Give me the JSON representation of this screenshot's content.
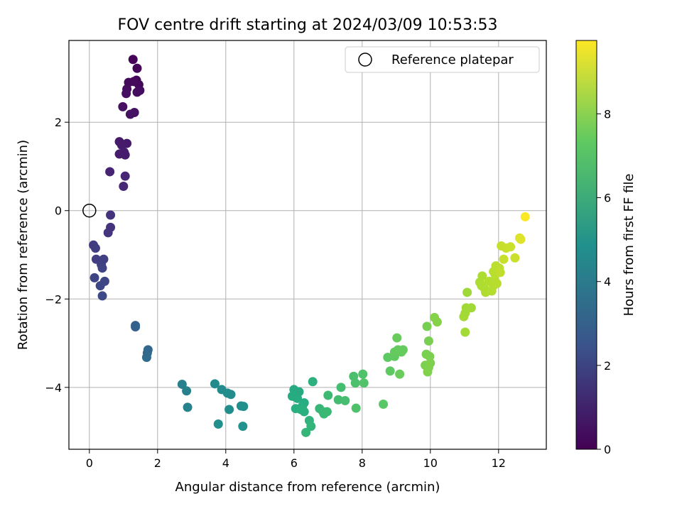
{
  "chart_data": {
    "type": "scatter",
    "title": "FOV centre drift starting at 2024/03/09 10:53:53",
    "xlabel": "Angular distance from reference (arcmin)",
    "ylabel": "Rotation from reference (arcmin)",
    "xlim": [
      -0.6,
      13.4
    ],
    "ylim": [
      -5.4,
      3.85
    ],
    "xticks": [
      0,
      2,
      4,
      6,
      8,
      10,
      12
    ],
    "xtick_labels": [
      "0",
      "2",
      "4",
      "6",
      "8",
      "10",
      "12"
    ],
    "yticks": [
      -4,
      -2,
      0,
      2
    ],
    "ytick_labels": [
      "−4",
      "−2",
      "0",
      "2"
    ],
    "grid": true,
    "legend": {
      "position": "top-right",
      "entries": [
        "Reference platepar"
      ]
    },
    "colorbar": {
      "label": "Hours from first FF file",
      "colormap": "viridis",
      "range": [
        0,
        9.75
      ],
      "ticks": [
        0,
        2,
        4,
        6,
        8
      ],
      "tick_labels": [
        "0",
        "2",
        "4",
        "6",
        "8"
      ]
    },
    "reference_point": {
      "x": 0,
      "y": 0
    },
    "points": [
      {
        "x": 1.28,
        "y": 3.42,
        "c": 0.05
      },
      {
        "x": 1.4,
        "y": 3.22,
        "c": 0.1
      },
      {
        "x": 1.38,
        "y": 2.95,
        "c": 0.15
      },
      {
        "x": 1.45,
        "y": 2.85,
        "c": 0.2
      },
      {
        "x": 1.15,
        "y": 2.9,
        "c": 0.22
      },
      {
        "x": 1.3,
        "y": 2.92,
        "c": 0.25
      },
      {
        "x": 1.48,
        "y": 2.72,
        "c": 0.3
      },
      {
        "x": 1.1,
        "y": 2.75,
        "c": 0.32
      },
      {
        "x": 1.4,
        "y": 2.68,
        "c": 0.35
      },
      {
        "x": 1.08,
        "y": 2.65,
        "c": 0.38
      },
      {
        "x": 0.98,
        "y": 2.35,
        "c": 0.42
      },
      {
        "x": 1.32,
        "y": 2.22,
        "c": 0.45
      },
      {
        "x": 1.2,
        "y": 2.18,
        "c": 0.48
      },
      {
        "x": 0.88,
        "y": 1.56,
        "c": 0.7
      },
      {
        "x": 1.1,
        "y": 1.52,
        "c": 0.72
      },
      {
        "x": 0.95,
        "y": 1.48,
        "c": 0.74
      },
      {
        "x": 1.02,
        "y": 1.32,
        "c": 0.76
      },
      {
        "x": 0.88,
        "y": 1.28,
        "c": 0.78
      },
      {
        "x": 1.05,
        "y": 1.26,
        "c": 0.8
      },
      {
        "x": 0.6,
        "y": 0.88,
        "c": 1.0
      },
      {
        "x": 1.05,
        "y": 0.78,
        "c": 1.05
      },
      {
        "x": 1.0,
        "y": 0.55,
        "c": 1.1
      },
      {
        "x": 0.62,
        "y": -0.1,
        "c": 1.4
      },
      {
        "x": 0.62,
        "y": -0.38,
        "c": 1.45
      },
      {
        "x": 0.55,
        "y": -0.5,
        "c": 1.5
      },
      {
        "x": 0.12,
        "y": -0.78,
        "c": 1.7
      },
      {
        "x": 0.18,
        "y": -0.85,
        "c": 1.75
      },
      {
        "x": 0.2,
        "y": -1.1,
        "c": 1.8
      },
      {
        "x": 0.42,
        "y": -1.1,
        "c": 1.85
      },
      {
        "x": 0.35,
        "y": -1.22,
        "c": 1.9
      },
      {
        "x": 0.38,
        "y": -1.3,
        "c": 1.95
      },
      {
        "x": 0.15,
        "y": -1.52,
        "c": 2.0
      },
      {
        "x": 0.45,
        "y": -1.6,
        "c": 2.05
      },
      {
        "x": 0.32,
        "y": -1.7,
        "c": 2.1
      },
      {
        "x": 0.38,
        "y": -1.93,
        "c": 2.15
      },
      {
        "x": 1.35,
        "y": -2.6,
        "c": 3.0
      },
      {
        "x": 1.35,
        "y": -2.63,
        "c": 3.02
      },
      {
        "x": 1.72,
        "y": -3.15,
        "c": 3.3
      },
      {
        "x": 1.7,
        "y": -3.22,
        "c": 3.32
      },
      {
        "x": 1.68,
        "y": -3.32,
        "c": 3.35
      },
      {
        "x": 2.72,
        "y": -3.93,
        "c": 4.2
      },
      {
        "x": 2.85,
        "y": -4.08,
        "c": 4.25
      },
      {
        "x": 2.88,
        "y": -4.45,
        "c": 4.3
      },
      {
        "x": 3.68,
        "y": -3.92,
        "c": 4.6
      },
      {
        "x": 3.88,
        "y": -4.05,
        "c": 4.65
      },
      {
        "x": 4.05,
        "y": -4.13,
        "c": 4.7
      },
      {
        "x": 4.15,
        "y": -4.16,
        "c": 4.72
      },
      {
        "x": 4.1,
        "y": -4.5,
        "c": 4.75
      },
      {
        "x": 4.45,
        "y": -4.42,
        "c": 4.8
      },
      {
        "x": 4.52,
        "y": -4.43,
        "c": 4.82
      },
      {
        "x": 3.78,
        "y": -4.83,
        "c": 4.85
      },
      {
        "x": 4.5,
        "y": -4.88,
        "c": 4.9
      },
      {
        "x": 6.0,
        "y": -4.05,
        "c": 5.9
      },
      {
        "x": 6.05,
        "y": -4.12,
        "c": 5.92
      },
      {
        "x": 6.15,
        "y": -4.1,
        "c": 5.94
      },
      {
        "x": 5.95,
        "y": -4.2,
        "c": 5.96
      },
      {
        "x": 6.1,
        "y": -4.25,
        "c": 5.98
      },
      {
        "x": 6.05,
        "y": -4.22,
        "c": 6.0
      },
      {
        "x": 6.3,
        "y": -4.35,
        "c": 6.05
      },
      {
        "x": 6.25,
        "y": -4.42,
        "c": 6.1
      },
      {
        "x": 6.05,
        "y": -4.48,
        "c": 6.12
      },
      {
        "x": 6.2,
        "y": -4.5,
        "c": 6.14
      },
      {
        "x": 6.3,
        "y": -4.55,
        "c": 6.16
      },
      {
        "x": 6.55,
        "y": -3.87,
        "c": 6.2
      },
      {
        "x": 6.45,
        "y": -4.75,
        "c": 6.3
      },
      {
        "x": 6.5,
        "y": -4.88,
        "c": 6.35
      },
      {
        "x": 6.35,
        "y": -5.02,
        "c": 6.4
      },
      {
        "x": 6.75,
        "y": -4.48,
        "c": 6.45
      },
      {
        "x": 6.85,
        "y": -4.55,
        "c": 6.5
      },
      {
        "x": 6.88,
        "y": -4.6,
        "c": 6.52
      },
      {
        "x": 6.97,
        "y": -4.55,
        "c": 6.55
      },
      {
        "x": 7.0,
        "y": -4.18,
        "c": 6.6
      },
      {
        "x": 7.3,
        "y": -4.28,
        "c": 6.7
      },
      {
        "x": 7.38,
        "y": -4.0,
        "c": 6.75
      },
      {
        "x": 7.5,
        "y": -4.3,
        "c": 6.8
      },
      {
        "x": 7.75,
        "y": -3.75,
        "c": 6.85
      },
      {
        "x": 7.8,
        "y": -3.9,
        "c": 6.9
      },
      {
        "x": 7.82,
        "y": -4.47,
        "c": 6.95
      },
      {
        "x": 8.02,
        "y": -3.7,
        "c": 7.0
      },
      {
        "x": 8.05,
        "y": -3.9,
        "c": 7.05
      },
      {
        "x": 8.62,
        "y": -4.38,
        "c": 7.2
      },
      {
        "x": 8.75,
        "y": -3.32,
        "c": 7.3
      },
      {
        "x": 8.82,
        "y": -3.63,
        "c": 7.32
      },
      {
        "x": 8.95,
        "y": -3.3,
        "c": 7.35
      },
      {
        "x": 8.95,
        "y": -3.2,
        "c": 7.38
      },
      {
        "x": 9.05,
        "y": -3.15,
        "c": 7.4
      },
      {
        "x": 9.2,
        "y": -3.15,
        "c": 7.42
      },
      {
        "x": 9.15,
        "y": -3.2,
        "c": 7.44
      },
      {
        "x": 9.02,
        "y": -2.88,
        "c": 7.46
      },
      {
        "x": 9.1,
        "y": -3.7,
        "c": 7.48
      },
      {
        "x": 9.9,
        "y": -2.62,
        "c": 7.7
      },
      {
        "x": 9.95,
        "y": -2.95,
        "c": 7.72
      },
      {
        "x": 9.88,
        "y": -3.25,
        "c": 7.74
      },
      {
        "x": 9.98,
        "y": -3.3,
        "c": 7.76
      },
      {
        "x": 9.85,
        "y": -3.5,
        "c": 7.78
      },
      {
        "x": 9.95,
        "y": -3.55,
        "c": 7.8
      },
      {
        "x": 10.0,
        "y": -3.45,
        "c": 7.82
      },
      {
        "x": 9.92,
        "y": -3.65,
        "c": 7.84
      },
      {
        "x": 10.12,
        "y": -2.42,
        "c": 7.9
      },
      {
        "x": 10.2,
        "y": -2.52,
        "c": 7.92
      },
      {
        "x": 11.08,
        "y": -1.85,
        "c": 8.3
      },
      {
        "x": 11.05,
        "y": -2.2,
        "c": 8.32
      },
      {
        "x": 11.2,
        "y": -2.2,
        "c": 8.34
      },
      {
        "x": 11.02,
        "y": -2.32,
        "c": 8.36
      },
      {
        "x": 10.98,
        "y": -2.4,
        "c": 8.38
      },
      {
        "x": 11.02,
        "y": -2.75,
        "c": 8.4
      },
      {
        "x": 11.45,
        "y": -1.62,
        "c": 8.5
      },
      {
        "x": 11.52,
        "y": -1.48,
        "c": 8.52
      },
      {
        "x": 11.5,
        "y": -1.7,
        "c": 8.54
      },
      {
        "x": 11.6,
        "y": -1.78,
        "c": 8.56
      },
      {
        "x": 11.62,
        "y": -1.85,
        "c": 8.58
      },
      {
        "x": 11.72,
        "y": -1.6,
        "c": 8.6
      },
      {
        "x": 11.8,
        "y": -1.82,
        "c": 8.62
      },
      {
        "x": 11.85,
        "y": -1.7,
        "c": 8.64
      },
      {
        "x": 11.9,
        "y": -1.6,
        "c": 8.66
      },
      {
        "x": 11.95,
        "y": -1.65,
        "c": 8.68
      },
      {
        "x": 11.9,
        "y": -1.45,
        "c": 8.7
      },
      {
        "x": 11.85,
        "y": -1.38,
        "c": 8.72
      },
      {
        "x": 11.98,
        "y": -1.35,
        "c": 8.74
      },
      {
        "x": 11.92,
        "y": -1.25,
        "c": 8.76
      },
      {
        "x": 12.02,
        "y": -1.3,
        "c": 8.78
      },
      {
        "x": 12.05,
        "y": -1.4,
        "c": 8.8
      },
      {
        "x": 12.08,
        "y": -0.8,
        "c": 8.9
      },
      {
        "x": 12.15,
        "y": -1.1,
        "c": 8.92
      },
      {
        "x": 12.22,
        "y": -0.85,
        "c": 8.94
      },
      {
        "x": 12.35,
        "y": -0.82,
        "c": 8.96
      },
      {
        "x": 12.48,
        "y": -1.07,
        "c": 8.98
      },
      {
        "x": 12.62,
        "y": -0.62,
        "c": 9.2
      },
      {
        "x": 12.65,
        "y": -0.65,
        "c": 9.3
      },
      {
        "x": 12.78,
        "y": -0.14,
        "c": 9.7
      }
    ]
  }
}
